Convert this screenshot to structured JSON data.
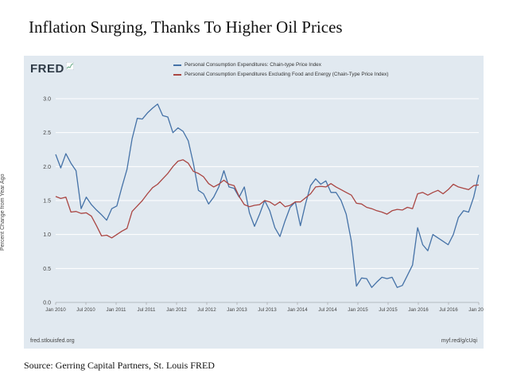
{
  "headline": "Inflation Surging, Thanks To Higher Oil Prices",
  "source": "Source: Gerring Capital Partners, St. Louis FRED",
  "fred": {
    "logo": "FRED",
    "footer_left": "fred.stlouisfed.org",
    "footer_right": "myf.red/g/cUqi"
  },
  "colors": {
    "panel_bg": "#e1e9f0",
    "series_pce": "#4572a7",
    "series_core": "#aa4643",
    "grid": "#ffffff"
  },
  "chart_data": {
    "type": "line",
    "ylabel": "Percent Change from Year Ago",
    "ylim": [
      0.0,
      3.0
    ],
    "yticks": [
      "0.0",
      "0.5",
      "1.0",
      "1.5",
      "2.0",
      "2.5",
      "3.0"
    ],
    "xticks": [
      "Jan 2010",
      "Jul 2010",
      "Jan 2011",
      "Jul 2011",
      "Jan 2012",
      "Jul 2012",
      "Jan 2013",
      "Jul 2013",
      "Jan 2014",
      "Jul 2014",
      "Jan 2015",
      "Jul 2015",
      "Jan 2016",
      "Jul 2016",
      "Jan 2017"
    ],
    "x_start": "Jan 2010",
    "x_end": "Jan 2017",
    "grid": "horizontal",
    "legend_position": "top",
    "series": [
      {
        "name": "Personal Consumption Expenditures: Chain-type Price Index",
        "values": [
          2.18,
          1.98,
          2.19,
          2.05,
          1.94,
          1.38,
          1.55,
          1.44,
          1.36,
          1.29,
          1.21,
          1.38,
          1.42,
          1.7,
          1.96,
          2.41,
          2.71,
          2.7,
          2.79,
          2.86,
          2.92,
          2.75,
          2.73,
          2.5,
          2.57,
          2.52,
          2.38,
          2.05,
          1.65,
          1.6,
          1.45,
          1.55,
          1.7,
          1.94,
          1.7,
          1.68,
          1.55,
          1.7,
          1.32,
          1.12,
          1.3,
          1.5,
          1.35,
          1.1,
          0.97,
          1.2,
          1.4,
          1.48,
          1.13,
          1.45,
          1.72,
          1.82,
          1.74,
          1.79,
          1.62,
          1.62,
          1.5,
          1.3,
          0.9,
          0.24,
          0.36,
          0.35,
          0.22,
          0.3,
          0.37,
          0.35,
          0.37,
          0.22,
          0.25,
          0.4,
          0.55,
          1.1,
          0.85,
          0.76,
          1.0,
          0.95,
          0.9,
          0.85,
          1.0,
          1.25,
          1.35,
          1.33,
          1.55,
          1.88
        ]
      },
      {
        "name": "Personal Consumption Expenditures Excluding Food and Energy (Chain-Type Price Index)",
        "values": [
          1.56,
          1.53,
          1.55,
          1.33,
          1.34,
          1.31,
          1.32,
          1.27,
          1.13,
          0.98,
          0.99,
          0.95,
          1.0,
          1.05,
          1.09,
          1.34,
          1.42,
          1.5,
          1.6,
          1.69,
          1.74,
          1.82,
          1.9,
          2.0,
          2.08,
          2.1,
          2.05,
          1.93,
          1.9,
          1.85,
          1.75,
          1.7,
          1.74,
          1.8,
          1.74,
          1.72,
          1.56,
          1.44,
          1.41,
          1.43,
          1.44,
          1.5,
          1.48,
          1.43,
          1.48,
          1.41,
          1.43,
          1.48,
          1.48,
          1.54,
          1.6,
          1.7,
          1.71,
          1.7,
          1.75,
          1.7,
          1.66,
          1.62,
          1.58,
          1.46,
          1.45,
          1.4,
          1.38,
          1.35,
          1.33,
          1.3,
          1.35,
          1.37,
          1.36,
          1.4,
          1.38,
          1.6,
          1.62,
          1.58,
          1.62,
          1.65,
          1.6,
          1.66,
          1.74,
          1.7,
          1.68,
          1.66,
          1.72,
          1.73
        ]
      }
    ]
  }
}
